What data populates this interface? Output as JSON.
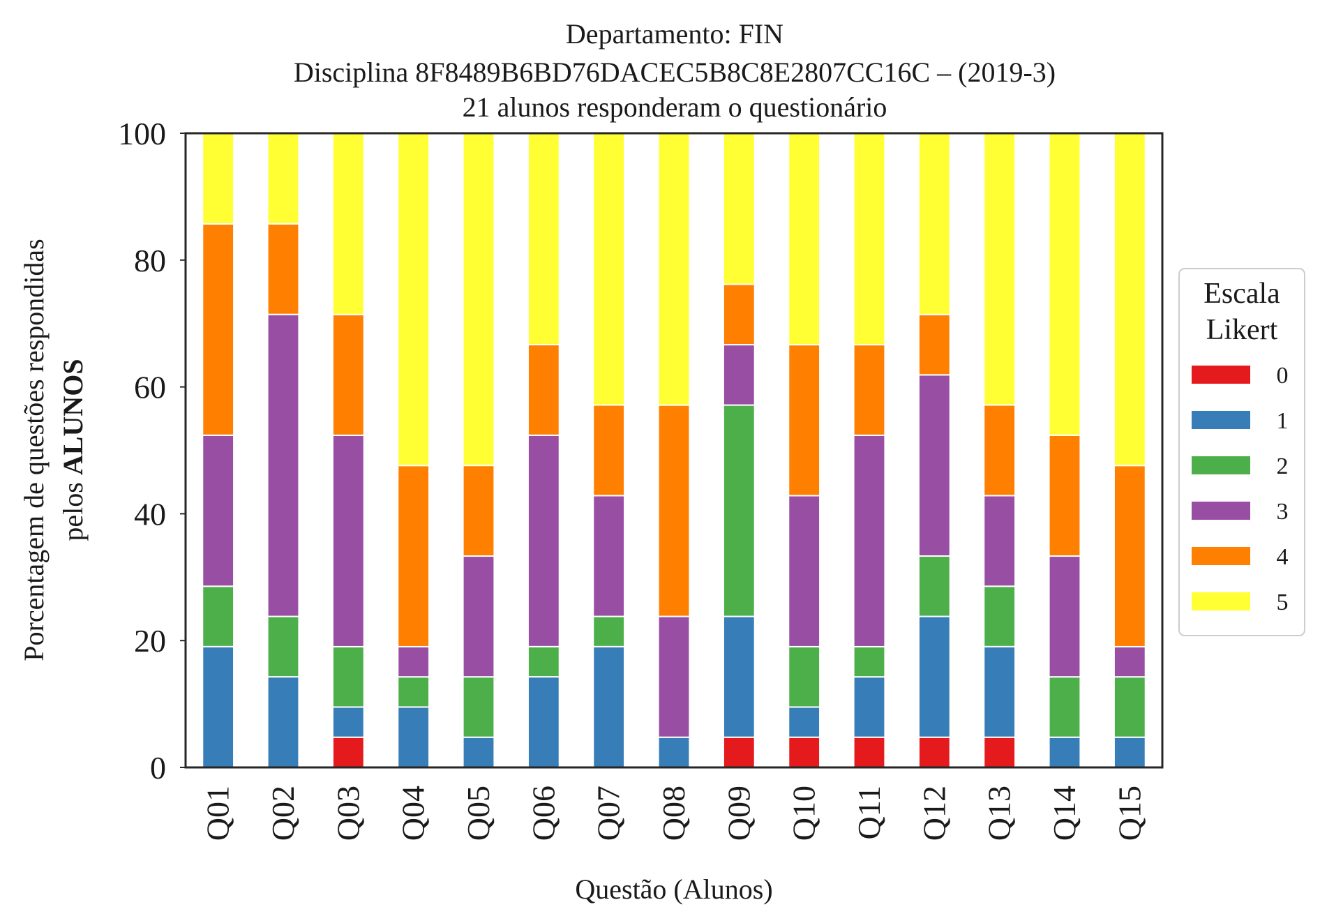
{
  "chart_data": {
    "type": "bar",
    "stacked": true,
    "title_lines": [
      "Departamento: FIN",
      "Disciplina 8F8489B6BD76DACEC5B8C8E2807CC16C – (2019-3)",
      "21 alunos responderam o questionário"
    ],
    "xlabel": "Questão (Alunos)",
    "ylabel_line1": "Porcentagem de questões respondidas",
    "ylabel_line2_prefix": "pelos ",
    "ylabel_line2_bold": "ALUNOS",
    "ylim": [
      0,
      100
    ],
    "yticks": [
      0,
      20,
      40,
      60,
      80,
      100
    ],
    "categories": [
      "Q01",
      "Q02",
      "Q03",
      "Q04",
      "Q05",
      "Q06",
      "Q07",
      "Q08",
      "Q09",
      "Q10",
      "Q11",
      "Q12",
      "Q13",
      "Q14",
      "Q15"
    ],
    "legend": {
      "title_lines": [
        "Escala",
        "Likert"
      ],
      "placement": "right"
    },
    "series": [
      {
        "name": "0",
        "color": "#e41a1c",
        "values": [
          0,
          0,
          4.76,
          0,
          0,
          0,
          0,
          0,
          4.76,
          4.76,
          4.76,
          4.76,
          4.76,
          0,
          0
        ]
      },
      {
        "name": "1",
        "color": "#377eb8",
        "values": [
          19.05,
          14.29,
          4.76,
          9.52,
          4.76,
          14.29,
          19.05,
          4.76,
          19.05,
          4.76,
          9.52,
          19.05,
          14.29,
          4.76,
          4.76
        ]
      },
      {
        "name": "2",
        "color": "#4daf4a",
        "values": [
          9.52,
          9.52,
          9.52,
          4.76,
          9.52,
          4.76,
          4.76,
          0,
          33.33,
          9.52,
          4.76,
          9.52,
          9.52,
          9.52,
          9.52
        ]
      },
      {
        "name": "3",
        "color": "#984ea3",
        "values": [
          23.81,
          47.62,
          33.33,
          4.76,
          19.05,
          33.33,
          19.05,
          19.05,
          9.52,
          23.81,
          33.33,
          28.57,
          14.29,
          19.05,
          4.76
        ]
      },
      {
        "name": "4",
        "color": "#ff7f00",
        "values": [
          33.33,
          14.29,
          19.05,
          28.57,
          14.29,
          14.29,
          14.29,
          33.33,
          9.52,
          23.81,
          14.29,
          9.52,
          14.29,
          19.05,
          28.57
        ]
      },
      {
        "name": "5",
        "color": "#ffff33",
        "values": [
          14.29,
          14.29,
          28.57,
          52.38,
          52.38,
          33.33,
          42.86,
          42.86,
          23.81,
          33.33,
          33.33,
          28.57,
          42.86,
          47.62,
          52.38
        ]
      }
    ]
  }
}
